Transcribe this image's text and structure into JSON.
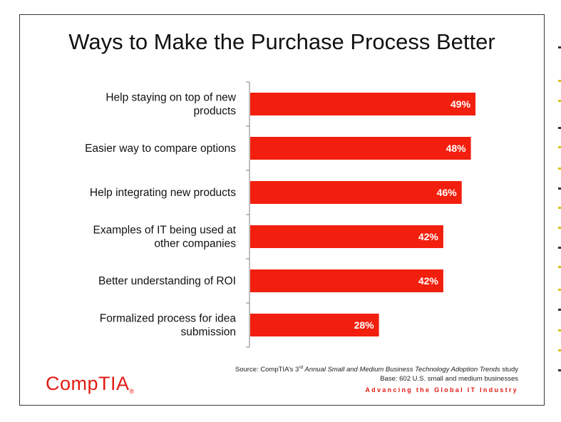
{
  "title": "Ways to Make the Purchase Process Better",
  "chart_data": {
    "type": "bar",
    "orientation": "horizontal",
    "title": "Ways to Make the Purchase Process Better",
    "categories": [
      [
        "Help staying on top of new",
        "products"
      ],
      [
        "Easier way to compare options"
      ],
      [
        "Help integrating new products"
      ],
      [
        "Examples of IT being used at",
        "other companies"
      ],
      [
        "Better understanding of ROI"
      ],
      [
        "Formalized process for idea",
        "submission"
      ]
    ],
    "values": [
      49,
      48,
      46,
      42,
      42,
      28
    ],
    "value_labels": [
      "49%",
      "48%",
      "46%",
      "42%",
      "42%",
      "28%"
    ],
    "xlim": [
      0,
      60
    ],
    "bar_color": "#f21f0e",
    "grid": false,
    "legend": "none"
  },
  "footer": {
    "source_prefix": "Source: CompTIA’s 3",
    "source_sup": "rd",
    "source_italic": " Annual Small and Medium Business Technology Adoption Trends",
    "source_suffix": " study",
    "base": "Base: 602 U.S. small and medium businesses"
  },
  "tagline": "Advancing the Global IT Industry",
  "logo": {
    "text": "CompTIA",
    "mark": "®",
    "color": "#e31b13"
  }
}
